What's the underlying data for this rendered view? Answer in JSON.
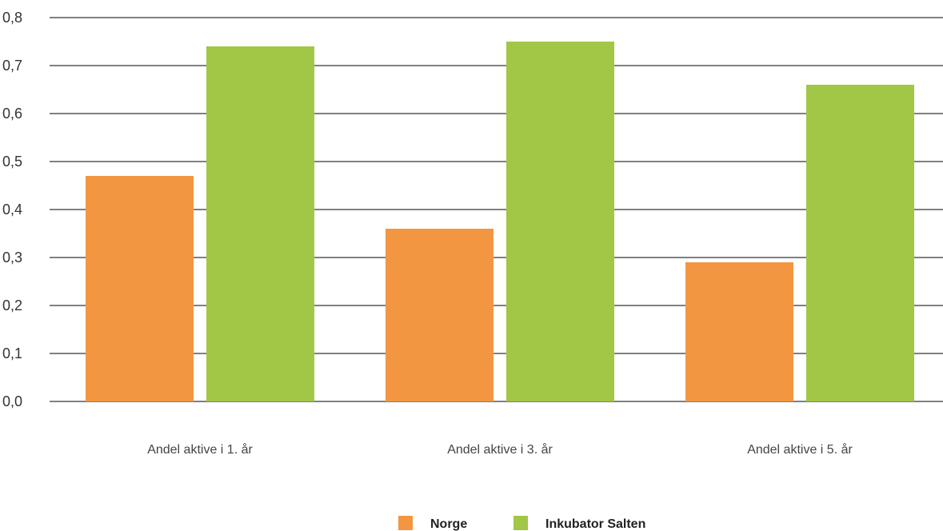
{
  "chart_data": {
    "type": "bar",
    "title": "",
    "xlabel": "",
    "ylabel": "",
    "categories": [
      "Andel aktive i 1. år",
      "Andel aktive i 3. år",
      "Andel aktive i 5. år"
    ],
    "series": [
      {
        "name": "Norge",
        "values": [
          0.47,
          0.36,
          0.29
        ],
        "color": "#F29641"
      },
      {
        "name": "Inkubator Salten",
        "values": [
          0.74,
          0.75,
          0.66
        ],
        "color": "#A2C646"
      }
    ],
    "ylim": [
      0,
      0.8
    ],
    "yticks": [
      "0,0",
      "0,1",
      "0,2",
      "0,3",
      "0,4",
      "0,5",
      "0,6",
      "0,7",
      "0,8"
    ],
    "grid": true,
    "legend_position": "bottom",
    "gridline_color": "#000000"
  }
}
